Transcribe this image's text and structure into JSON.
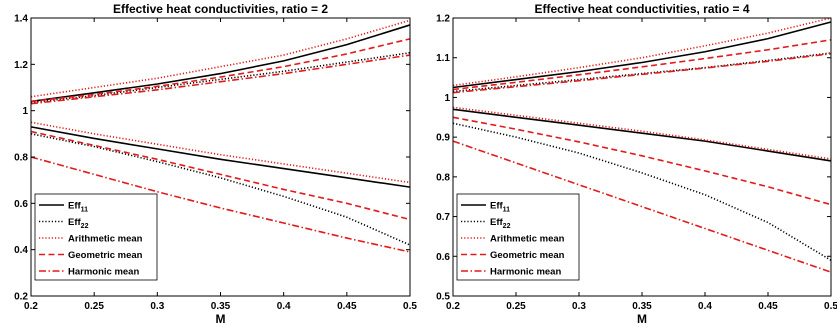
{
  "chart_data": [
    {
      "type": "line",
      "title": "Effective heat conductivities, ratio = 2",
      "xlabel": "M",
      "ylabel": "",
      "xlim": [
        0.2,
        0.5
      ],
      "ylim": [
        0.2,
        1.4
      ],
      "xticks": [
        "0.2",
        "0.25",
        "0.3",
        "0.35",
        "0.4",
        "0.45",
        "0.5"
      ],
      "yticks": [
        "0.2",
        "0.4",
        "0.6",
        "0.8",
        "1",
        "1.2",
        "1.4"
      ],
      "x": [
        0.2,
        0.25,
        0.3,
        0.35,
        0.4,
        0.45,
        0.5
      ],
      "legend_position": "lower-left",
      "legend": [
        {
          "label": "Eff",
          "sub": "11",
          "style": "solid",
          "color": "#000000"
        },
        {
          "label": "Eff",
          "sub": "22",
          "style": "dotted",
          "color": "#000000"
        },
        {
          "label": "Arithmetic mean",
          "style": "dotted",
          "color": "#e31a1c"
        },
        {
          "label": "Geometric mean",
          "style": "dashed",
          "color": "#e31a1c"
        },
        {
          "label": "Harmonic mean",
          "style": "dashdot",
          "color": "#e31a1c"
        }
      ],
      "series": [
        {
          "name": "Eff11",
          "group": "upper",
          "color": "#000000",
          "style": "solid",
          "values": [
            1.04,
            1.077,
            1.115,
            1.16,
            1.215,
            1.285,
            1.37
          ]
        },
        {
          "name": "Eff22",
          "group": "upper",
          "color": "#000000",
          "style": "dotted",
          "values": [
            1.035,
            1.065,
            1.1,
            1.135,
            1.17,
            1.21,
            1.25
          ]
        },
        {
          "name": "Arithmetic mean",
          "group": "upper",
          "color": "#e31a1c",
          "style": "dotted",
          "values": [
            1.06,
            1.1,
            1.14,
            1.19,
            1.24,
            1.31,
            1.39
          ]
        },
        {
          "name": "Geometric mean",
          "group": "upper",
          "color": "#e31a1c",
          "style": "dashed",
          "values": [
            1.04,
            1.07,
            1.105,
            1.145,
            1.19,
            1.245,
            1.31
          ]
        },
        {
          "name": "Harmonic mean",
          "group": "upper",
          "color": "#e31a1c",
          "style": "dashdot",
          "values": [
            1.03,
            1.06,
            1.09,
            1.125,
            1.16,
            1.2,
            1.24
          ]
        },
        {
          "name": "Eff11",
          "group": "lower",
          "color": "#000000",
          "style": "solid",
          "values": [
            0.93,
            0.88,
            0.835,
            0.79,
            0.75,
            0.71,
            0.67
          ]
        },
        {
          "name": "Eff22",
          "group": "lower",
          "color": "#000000",
          "style": "dotted",
          "values": [
            0.9,
            0.845,
            0.78,
            0.71,
            0.63,
            0.54,
            0.42
          ]
        },
        {
          "name": "Arithmetic mean",
          "group": "lower",
          "color": "#e31a1c",
          "style": "dotted",
          "values": [
            0.95,
            0.9,
            0.855,
            0.81,
            0.77,
            0.73,
            0.69
          ]
        },
        {
          "name": "Geometric mean",
          "group": "lower",
          "color": "#e31a1c",
          "style": "dashed",
          "values": [
            0.91,
            0.85,
            0.79,
            0.725,
            0.66,
            0.6,
            0.53
          ]
        },
        {
          "name": "Harmonic mean",
          "group": "lower",
          "color": "#e31a1c",
          "style": "dashdot",
          "values": [
            0.8,
            0.725,
            0.65,
            0.58,
            0.515,
            0.45,
            0.39
          ]
        }
      ]
    },
    {
      "type": "line",
      "title": "Effective heat conductivities, ratio = 4",
      "xlabel": "M",
      "ylabel": "",
      "xlim": [
        0.2,
        0.5
      ],
      "ylim": [
        0.5,
        1.2
      ],
      "xticks": [
        "0.2",
        "0.25",
        "0.3",
        "0.35",
        "0.4",
        "0.45",
        "0.5"
      ],
      "yticks": [
        "0.5",
        "0.6",
        "0.7",
        "0.8",
        "0.9",
        "1",
        "1.1",
        "1.2"
      ],
      "x": [
        0.2,
        0.25,
        0.3,
        0.35,
        0.4,
        0.45,
        0.5
      ],
      "legend_position": "lower-left",
      "legend": [
        {
          "label": "Eff",
          "sub": "11",
          "style": "solid",
          "color": "#000000"
        },
        {
          "label": "Eff",
          "sub": "22",
          "style": "dotted",
          "color": "#000000"
        },
        {
          "label": "Arithmetic mean",
          "style": "dotted",
          "color": "#e31a1c"
        },
        {
          "label": "Geometric mean",
          "style": "dashed",
          "color": "#e31a1c"
        },
        {
          "label": "Harmonic mean",
          "style": "dashdot",
          "color": "#e31a1c"
        }
      ],
      "series": [
        {
          "name": "Eff11",
          "group": "upper",
          "color": "#000000",
          "style": "solid",
          "values": [
            1.025,
            1.045,
            1.065,
            1.088,
            1.115,
            1.148,
            1.19
          ]
        },
        {
          "name": "Eff22",
          "group": "upper",
          "color": "#000000",
          "style": "dotted",
          "values": [
            1.015,
            1.03,
            1.045,
            1.06,
            1.075,
            1.093,
            1.112
          ]
        },
        {
          "name": "Arithmetic mean",
          "group": "upper",
          "color": "#e31a1c",
          "style": "dotted",
          "values": [
            1.03,
            1.052,
            1.075,
            1.1,
            1.13,
            1.162,
            1.2
          ]
        },
        {
          "name": "Geometric mean",
          "group": "upper",
          "color": "#e31a1c",
          "style": "dashed",
          "values": [
            1.02,
            1.038,
            1.057,
            1.077,
            1.098,
            1.12,
            1.145
          ]
        },
        {
          "name": "Harmonic mean",
          "group": "upper",
          "color": "#e31a1c",
          "style": "dashdot",
          "values": [
            1.012,
            1.027,
            1.042,
            1.058,
            1.074,
            1.091,
            1.11
          ]
        },
        {
          "name": "Eff11",
          "group": "lower",
          "color": "#000000",
          "style": "solid",
          "values": [
            0.97,
            0.95,
            0.93,
            0.91,
            0.89,
            0.865,
            0.84
          ]
        },
        {
          "name": "Eff22",
          "group": "lower",
          "color": "#000000",
          "style": "dotted",
          "values": [
            0.935,
            0.9,
            0.86,
            0.81,
            0.755,
            0.685,
            0.59
          ]
        },
        {
          "name": "Arithmetic mean",
          "group": "lower",
          "color": "#e31a1c",
          "style": "dotted",
          "values": [
            0.975,
            0.955,
            0.935,
            0.915,
            0.893,
            0.869,
            0.845
          ]
        },
        {
          "name": "Geometric mean",
          "group": "lower",
          "color": "#e31a1c",
          "style": "dashed",
          "values": [
            0.95,
            0.92,
            0.888,
            0.853,
            0.815,
            0.775,
            0.73
          ]
        },
        {
          "name": "Harmonic mean",
          "group": "lower",
          "color": "#e31a1c",
          "style": "dashdot",
          "values": [
            0.89,
            0.835,
            0.78,
            0.725,
            0.67,
            0.615,
            0.56
          ]
        }
      ]
    }
  ]
}
